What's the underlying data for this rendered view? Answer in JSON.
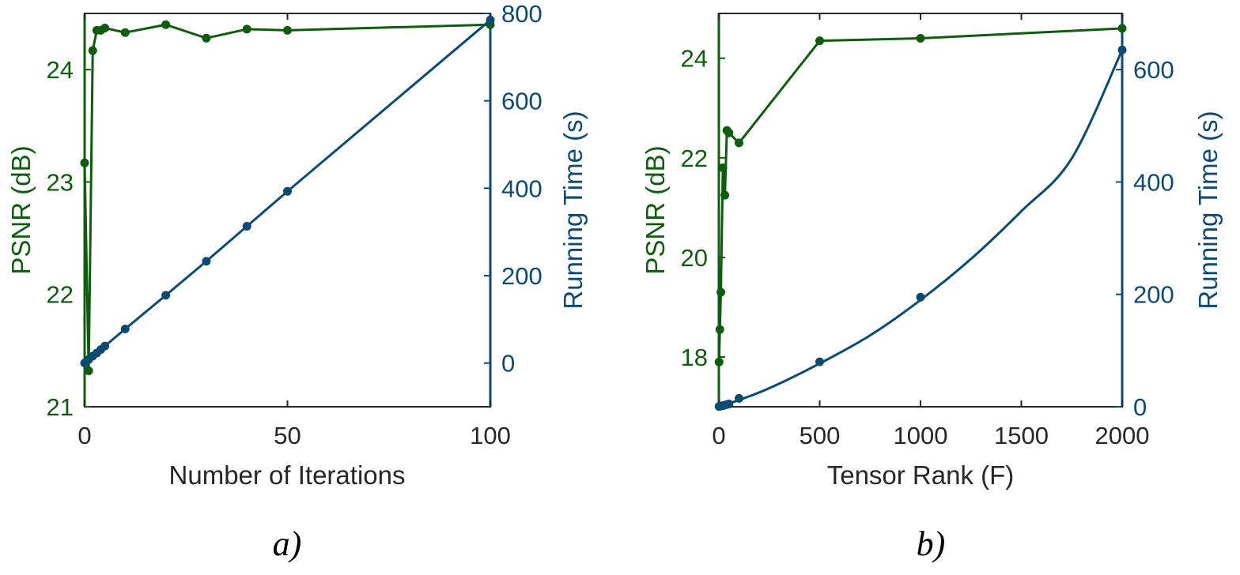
{
  "colors": {
    "psnr": "#0f5c0f",
    "time": "#0d4a73",
    "axis_x": "#262626"
  },
  "chart_data": [
    {
      "type": "line",
      "panel_label": "a)",
      "xlabel": "Number of Iterations",
      "ylabel_left": "PSNR (dB)",
      "ylabel_right": "Running Time (s)",
      "xlim": [
        0,
        100
      ],
      "ylim_left": [
        21,
        24.5
      ],
      "ylim_right": [
        -100,
        800
      ],
      "xticks": [
        0,
        50,
        100
      ],
      "yticks_left": [
        21,
        22,
        23,
        24
      ],
      "yticks_right": [
        0,
        200,
        400,
        600,
        800
      ],
      "grid": false,
      "series": [
        {
          "axis": "left",
          "x": [
            0,
            1,
            2,
            3,
            4,
            5,
            10,
            20,
            30,
            40,
            50,
            100
          ],
          "y": [
            23.17,
            21.32,
            24.17,
            24.35,
            24.35,
            24.37,
            24.33,
            24.4,
            24.28,
            24.36,
            24.35,
            24.4
          ]
        },
        {
          "axis": "right",
          "x": [
            0,
            1,
            2,
            3,
            4,
            5,
            10,
            20,
            30,
            40,
            50,
            100
          ],
          "y": [
            0,
            8,
            16,
            23,
            31,
            39,
            78,
            155,
            233,
            313,
            393,
            785
          ]
        }
      ]
    },
    {
      "type": "line",
      "panel_label": "b)",
      "xlabel": "Tensor Rank (F)",
      "ylabel_left": "PSNR (dB)",
      "ylabel_right": "Running Time (s)",
      "xlim": [
        0,
        2000
      ],
      "ylim_left": [
        17,
        24.9
      ],
      "ylim_right": [
        0,
        700
      ],
      "xticks": [
        0,
        500,
        1000,
        1500,
        2000
      ],
      "yticks_left": [
        18,
        20,
        22,
        24
      ],
      "yticks_right": [
        0,
        200,
        400,
        600
      ],
      "grid": false,
      "series": [
        {
          "axis": "left",
          "x": [
            1,
            5,
            10,
            20,
            30,
            40,
            50,
            100,
            500,
            1000,
            2000
          ],
          "y": [
            17.9,
            18.55,
            19.3,
            21.8,
            21.25,
            22.55,
            22.5,
            22.3,
            24.35,
            24.4,
            24.6
          ]
        },
        {
          "axis": "right",
          "x": [
            1,
            5,
            10,
            20,
            30,
            40,
            50,
            100,
            500,
            1000,
            2000
          ],
          "y": [
            0.5,
            1,
            1.5,
            2,
            3,
            4,
            5,
            15,
            80,
            195,
            635
          ]
        },
        {
          "axis": "right",
          "role": "fit",
          "x": [
            0,
            100,
            250,
            500,
            750,
            1000,
            1250,
            1500,
            1750,
            2000
          ],
          "y": [
            0,
            12,
            33,
            77,
            127,
            190,
            263,
            348,
            442,
            635
          ]
        }
      ]
    }
  ]
}
